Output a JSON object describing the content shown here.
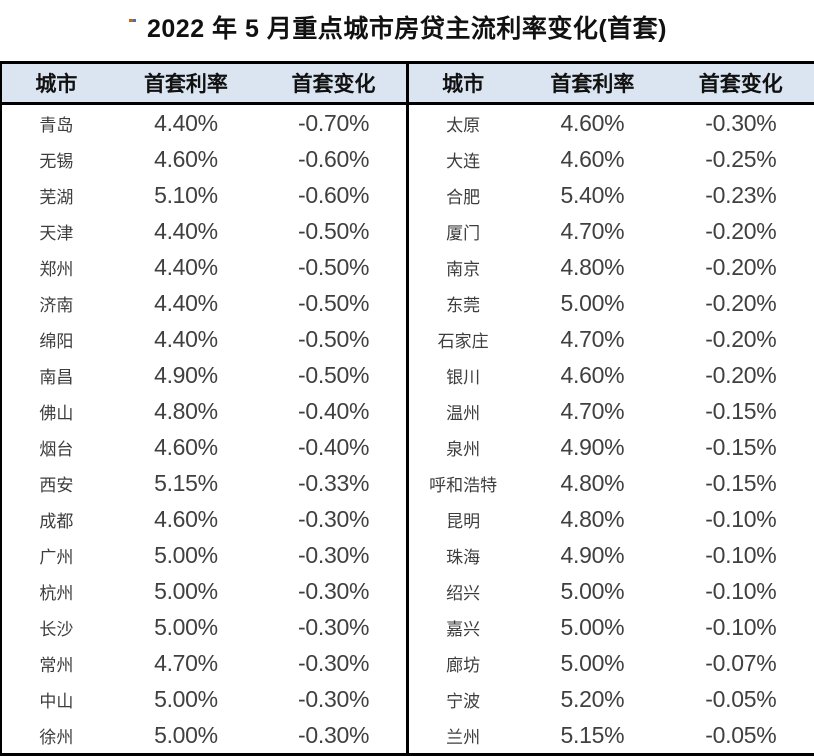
{
  "title": "2022 年 5 月重点城市房贷主流利率变化(首套)",
  "table": {
    "headers": {
      "city": "城市",
      "rate": "首套利率",
      "change": "首套变化"
    },
    "panel_layout": "two side-by-side panels of 18 rows sharing identical headers"
  },
  "colors": {
    "header_bg": "#dbe5f1",
    "border": "#000000",
    "header_text": "#111111",
    "body_text": "#3f3f3f",
    "title_text": "#111111"
  },
  "stray_mark": {
    "description": "tiny orange/blue speck left of title",
    "colors": [
      "#b96a1d",
      "#4a6fb5"
    ]
  },
  "chart_data": {
    "type": "table",
    "title": "2022 年 5 月重点城市房贷主流利率变化(首套)",
    "columns": [
      "城市",
      "首套利率",
      "首套变化"
    ],
    "layout": "entries 0-17 form the left panel top-to-bottom, entries 18-35 form the right panel top-to-bottom",
    "entries": [
      {
        "city": "青岛",
        "rate": "4.40%",
        "change": "-0.70%"
      },
      {
        "city": "无锡",
        "rate": "4.60%",
        "change": "-0.60%"
      },
      {
        "city": "芜湖",
        "rate": "5.10%",
        "change": "-0.60%"
      },
      {
        "city": "天津",
        "rate": "4.40%",
        "change": "-0.50%"
      },
      {
        "city": "郑州",
        "rate": "4.40%",
        "change": "-0.50%"
      },
      {
        "city": "济南",
        "rate": "4.40%",
        "change": "-0.50%"
      },
      {
        "city": "绵阳",
        "rate": "4.40%",
        "change": "-0.50%"
      },
      {
        "city": "南昌",
        "rate": "4.90%",
        "change": "-0.50%"
      },
      {
        "city": "佛山",
        "rate": "4.80%",
        "change": "-0.40%"
      },
      {
        "city": "烟台",
        "rate": "4.60%",
        "change": "-0.40%"
      },
      {
        "city": "西安",
        "rate": "5.15%",
        "change": "-0.33%"
      },
      {
        "city": "成都",
        "rate": "4.60%",
        "change": "-0.30%"
      },
      {
        "city": "广州",
        "rate": "5.00%",
        "change": "-0.30%"
      },
      {
        "city": "杭州",
        "rate": "5.00%",
        "change": "-0.30%"
      },
      {
        "city": "长沙",
        "rate": "5.00%",
        "change": "-0.30%"
      },
      {
        "city": "常州",
        "rate": "4.70%",
        "change": "-0.30%"
      },
      {
        "city": "中山",
        "rate": "5.00%",
        "change": "-0.30%"
      },
      {
        "city": "徐州",
        "rate": "5.00%",
        "change": "-0.30%"
      },
      {
        "city": "太原",
        "rate": "4.60%",
        "change": "-0.30%"
      },
      {
        "city": "大连",
        "rate": "4.60%",
        "change": "-0.25%"
      },
      {
        "city": "合肥",
        "rate": "5.40%",
        "change": "-0.23%"
      },
      {
        "city": "厦门",
        "rate": "4.70%",
        "change": "-0.20%"
      },
      {
        "city": "南京",
        "rate": "4.80%",
        "change": "-0.20%"
      },
      {
        "city": "东莞",
        "rate": "5.00%",
        "change": "-0.20%"
      },
      {
        "city": "石家庄",
        "rate": "4.70%",
        "change": "-0.20%"
      },
      {
        "city": "银川",
        "rate": "4.60%",
        "change": "-0.20%"
      },
      {
        "city": "温州",
        "rate": "4.70%",
        "change": "-0.15%"
      },
      {
        "city": "泉州",
        "rate": "4.90%",
        "change": "-0.15%"
      },
      {
        "city": "呼和浩特",
        "rate": "4.80%",
        "change": "-0.15%"
      },
      {
        "city": "昆明",
        "rate": "4.80%",
        "change": "-0.10%"
      },
      {
        "city": "珠海",
        "rate": "4.90%",
        "change": "-0.10%"
      },
      {
        "city": "绍兴",
        "rate": "5.00%",
        "change": "-0.10%"
      },
      {
        "city": "嘉兴",
        "rate": "5.00%",
        "change": "-0.10%"
      },
      {
        "city": "廊坊",
        "rate": "5.00%",
        "change": "-0.07%"
      },
      {
        "city": "宁波",
        "rate": "5.20%",
        "change": "-0.05%"
      },
      {
        "city": "兰州",
        "rate": "5.15%",
        "change": "-0.05%"
      }
    ]
  }
}
